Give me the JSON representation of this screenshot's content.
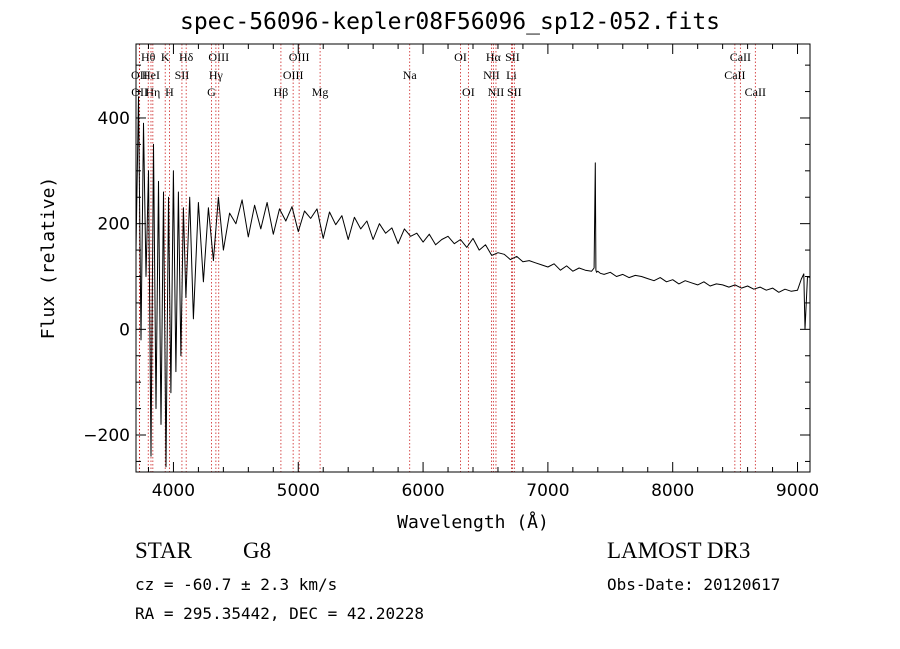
{
  "title": "spec-56096-kepler08F56096_sp12-052.fits",
  "info": {
    "class": "STAR",
    "subclass": "G8",
    "survey": "LAMOST DR3",
    "cz": "cz = -60.7 ± 2.3 km/s",
    "obs_date": "Obs-Date: 20120617",
    "coords": "RA = 295.35442, DEC =  42.20228"
  },
  "chart_data": {
    "type": "line",
    "title": "spec-56096-kepler08F56096_sp12-052.fits",
    "xlabel": "Wavelength (Å)",
    "ylabel": "Flux (relative)",
    "xlim": [
      3700,
      9100
    ],
    "ylim": [
      -270,
      540
    ],
    "xticks": [
      4000,
      5000,
      6000,
      7000,
      8000,
      9000
    ],
    "yticks": [
      -200,
      0,
      200,
      400
    ],
    "line_color": "#000000",
    "marker_color": "#cc2222",
    "spectrum": {
      "x": [
        3700,
        3720,
        3740,
        3760,
        3780,
        3800,
        3820,
        3840,
        3860,
        3880,
        3900,
        3920,
        3940,
        3960,
        3980,
        4000,
        4020,
        4040,
        4060,
        4080,
        4100,
        4130,
        4160,
        4200,
        4240,
        4280,
        4320,
        4360,
        4400,
        4450,
        4500,
        4550,
        4600,
        4650,
        4700,
        4750,
        4800,
        4850,
        4900,
        4950,
        5000,
        5050,
        5100,
        5150,
        5200,
        5250,
        5300,
        5350,
        5400,
        5450,
        5500,
        5550,
        5600,
        5650,
        5700,
        5750,
        5800,
        5850,
        5900,
        5950,
        6000,
        6050,
        6100,
        6150,
        6200,
        6250,
        6300,
        6350,
        6400,
        6450,
        6500,
        6550,
        6600,
        6650,
        6700,
        6750,
        6800,
        6850,
        6900,
        6950,
        7000,
        7050,
        7100,
        7150,
        7200,
        7250,
        7300,
        7350,
        7370,
        7380,
        7385,
        7390,
        7400,
        7420,
        7450,
        7500,
        7550,
        7600,
        7650,
        7700,
        7750,
        7800,
        7850,
        7900,
        7950,
        8000,
        8050,
        8100,
        8150,
        8200,
        8250,
        8300,
        8350,
        8400,
        8450,
        8500,
        8550,
        8600,
        8650,
        8700,
        8750,
        8800,
        8850,
        8900,
        8950,
        9000,
        9030,
        9050,
        9060,
        9080,
        9100
      ],
      "y": [
        150,
        440,
        -20,
        390,
        100,
        300,
        -240,
        350,
        -150,
        280,
        -180,
        260,
        -260,
        250,
        -120,
        300,
        -80,
        260,
        -50,
        230,
        60,
        250,
        20,
        240,
        90,
        230,
        130,
        250,
        150,
        220,
        200,
        245,
        175,
        235,
        190,
        240,
        180,
        228,
        205,
        232,
        185,
        224,
        210,
        228,
        172,
        222,
        198,
        215,
        170,
        212,
        190,
        205,
        170,
        200,
        182,
        192,
        162,
        190,
        176,
        182,
        165,
        180,
        160,
        170,
        176,
        162,
        170,
        155,
        172,
        150,
        160,
        140,
        145,
        142,
        132,
        138,
        128,
        130,
        126,
        122,
        118,
        124,
        112,
        120,
        110,
        116,
        112,
        110,
        116,
        315,
        112,
        108,
        110,
        106,
        104,
        108,
        100,
        104,
        98,
        102,
        100,
        96,
        92,
        98,
        90,
        94,
        86,
        92,
        88,
        84,
        90,
        82,
        86,
        84,
        80,
        84,
        78,
        82,
        76,
        80,
        74,
        78,
        70,
        76,
        72,
        74,
        95,
        105,
        0,
        100,
        98
      ]
    },
    "line_markers": [
      {
        "label": "OII",
        "wavelength": 3727,
        "row": 1
      },
      {
        "label": "OII",
        "wavelength": 3729,
        "row": 2
      },
      {
        "label": "Hθ",
        "wavelength": 3798,
        "row": 0
      },
      {
        "label": "HeI",
        "wavelength": 3820,
        "row": 1
      },
      {
        "label": "Hη",
        "wavelength": 3835,
        "row": 2
      },
      {
        "label": "K",
        "wavelength": 3934,
        "row": 0
      },
      {
        "label": "SII",
        "wavelength": 4068,
        "row": 1
      },
      {
        "label": "H",
        "wavelength": 3968,
        "row": 2
      },
      {
        "label": "Hδ",
        "wavelength": 4102,
        "row": 0
      },
      {
        "label": "OIII",
        "wavelength": 4363,
        "row": 0
      },
      {
        "label": "Hγ",
        "wavelength": 4340,
        "row": 1
      },
      {
        "label": "G",
        "wavelength": 4305,
        "row": 2
      },
      {
        "label": "Hβ",
        "wavelength": 4861,
        "row": 2
      },
      {
        "label": "OIII",
        "wavelength": 5007,
        "row": 0
      },
      {
        "label": "OIII",
        "wavelength": 4959,
        "row": 1
      },
      {
        "label": "Mg",
        "wavelength": 5175,
        "row": 2
      },
      {
        "label": "Na",
        "wavelength": 5893,
        "row": 1
      },
      {
        "label": "OI",
        "wavelength": 6300,
        "row": 0
      },
      {
        "label": "OI",
        "wavelength": 6363,
        "row": 2
      },
      {
        "label": "Hα",
        "wavelength": 6563,
        "row": 0
      },
      {
        "label": "NII",
        "wavelength": 6548,
        "row": 1
      },
      {
        "label": "NII",
        "wavelength": 6584,
        "row": 2
      },
      {
        "label": "SII",
        "wavelength": 6716,
        "row": 0
      },
      {
        "label": "Li",
        "wavelength": 6708,
        "row": 1
      },
      {
        "label": "SII",
        "wavelength": 6731,
        "row": 2
      },
      {
        "label": "CaII",
        "wavelength": 8542,
        "row": 0
      },
      {
        "label": "CaII",
        "wavelength": 8498,
        "row": 1
      },
      {
        "label": "CaII",
        "wavelength": 8662,
        "row": 2
      }
    ]
  }
}
